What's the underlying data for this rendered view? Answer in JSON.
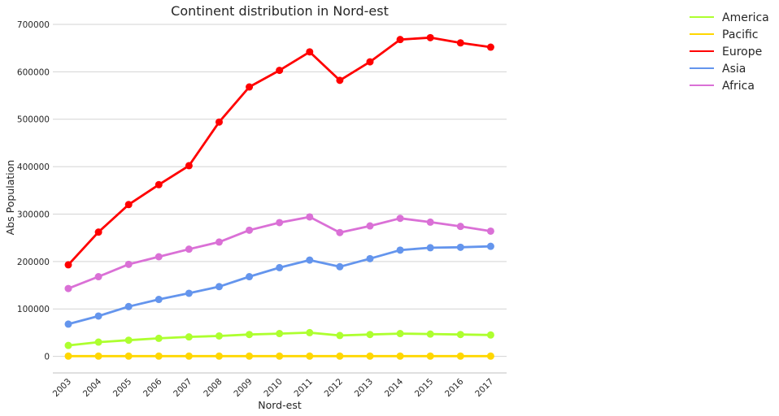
{
  "chart_data": {
    "type": "line",
    "title": "Continent distribution in Nord-est",
    "xlabel": "Nord-est",
    "ylabel": "Abs Population",
    "ylim": [
      -35000,
      700000
    ],
    "yticks": [
      0,
      100000,
      200000,
      300000,
      400000,
      500000,
      600000,
      700000
    ],
    "x": [
      "2003",
      "2004",
      "2005",
      "2006",
      "2007",
      "2008",
      "2009",
      "2010",
      "2011",
      "2012",
      "2013",
      "2014",
      "2015",
      "2016",
      "2017"
    ],
    "grid": "horizontal",
    "legend": "outside-top-right",
    "series": [
      {
        "name": "America",
        "color": "#adff2f",
        "values": [
          23000,
          30000,
          34000,
          38000,
          41000,
          43000,
          46000,
          48000,
          50000,
          44000,
          46000,
          48000,
          47000,
          46000,
          45000
        ]
      },
      {
        "name": "Pacific",
        "color": "#ffd700",
        "values": [
          500,
          500,
          500,
          500,
          500,
          500,
          500,
          500,
          500,
          500,
          500,
          500,
          500,
          500,
          500
        ]
      },
      {
        "name": "Europe",
        "color": "#ff0000",
        "values": [
          193000,
          262000,
          320000,
          362000,
          402000,
          494000,
          568000,
          603000,
          642000,
          582000,
          621000,
          668000,
          672000,
          661000,
          652000
        ]
      },
      {
        "name": "Asia",
        "color": "#6495ed",
        "values": [
          68000,
          85000,
          105000,
          120000,
          133000,
          147000,
          168000,
          187000,
          203000,
          189000,
          206000,
          224000,
          229000,
          230000,
          232000
        ]
      },
      {
        "name": "Africa",
        "color": "#da70d6",
        "values": [
          143000,
          168000,
          194000,
          210000,
          226000,
          241000,
          266000,
          282000,
          294000,
          261000,
          275000,
          291000,
          283000,
          274000,
          264000
        ]
      }
    ]
  }
}
